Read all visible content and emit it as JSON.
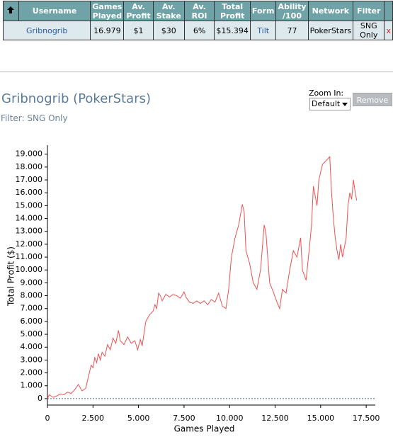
{
  "table": {
    "headers": [
      "Username",
      "Games Played",
      "Av. Profit",
      "Av. Stake",
      "Av. ROI",
      "Total Profit",
      "Form",
      "Ability /100",
      "Network",
      "Filter"
    ],
    "rows": [
      [
        "Gribnogrib",
        "16.979",
        "$1",
        "$30",
        "6%",
        "$15.394",
        "Tilt",
        "77",
        "PokerStars",
        "SNG Only",
        "x"
      ]
    ]
  },
  "controls": {
    "zoom_label": "Zoom In:",
    "zoom_value": "Default",
    "remove_button": "Remove"
  },
  "chart_data": {
    "type": "line",
    "title": "Gribnogrib (PokerStars)",
    "subtitle": "Filter: SNG Only",
    "x_label": "Games Played",
    "y_label": "Total Profit ($)",
    "xlim": [
      0,
      18000
    ],
    "ylim": [
      -500,
      19700
    ],
    "xticks": [
      0,
      {
        "value": 2500,
        "label": "2.500"
      },
      {
        "value": 5000,
        "label": "5.000"
      },
      {
        "value": 7500,
        "label": "7.500"
      },
      {
        "value": 10000,
        "label": "10.000"
      },
      {
        "value": 12500,
        "label": "12.500"
      },
      {
        "value": 15000,
        "label": "15.000"
      },
      {
        "value": 17500,
        "label": "17.500"
      }
    ],
    "yticks": [
      0,
      {
        "value": 1000,
        "label": "1.000"
      },
      {
        "value": 2000,
        "label": "2.000"
      },
      {
        "value": 3000,
        "label": "3.000"
      },
      {
        "value": 4000,
        "label": "4.000"
      },
      {
        "value": 5000,
        "label": "5.000"
      },
      {
        "value": 6000,
        "label": "6.000"
      },
      {
        "value": 7000,
        "label": "7.000"
      },
      {
        "value": 8000,
        "label": "8.000"
      },
      {
        "value": 9000,
        "label": "9.000"
      },
      {
        "value": 10000,
        "label": "10.000"
      },
      {
        "value": 11000,
        "label": "11.000"
      },
      {
        "value": 12000,
        "label": "12.000"
      },
      {
        "value": 13000,
        "label": "13.000"
      },
      {
        "value": 14000,
        "label": "14.000"
      },
      {
        "value": 15000,
        "label": "15.000"
      },
      {
        "value": 16000,
        "label": "16.000"
      },
      {
        "value": 17000,
        "label": "17.000"
      },
      {
        "value": 18000,
        "label": "18.000"
      },
      {
        "value": 19000,
        "label": "19.000"
      }
    ],
    "zero_line_color": "#4a5fc0",
    "series": [
      {
        "color": "#f05050",
        "x": [
          0,
          100,
          300,
          500,
          700,
          900,
          1100,
          1300,
          1500,
          1700,
          1900,
          2100,
          2200,
          2300,
          2400,
          2500,
          2600,
          2700,
          2800,
          2900,
          3000,
          3150,
          3300,
          3450,
          3600,
          3750,
          3900,
          4000,
          4200,
          4400,
          4600,
          4800,
          4950,
          5100,
          5200,
          5400,
          5600,
          5800,
          5900,
          6000,
          6100,
          6200,
          6300,
          6500,
          6700,
          6900,
          7100,
          7300,
          7500,
          7600,
          7800,
          8000,
          8200,
          8400,
          8600,
          8800,
          9000,
          9200,
          9400,
          9600,
          9800,
          9950,
          10100,
          10300,
          10500,
          10700,
          10800,
          10900,
          11100,
          11300,
          11500,
          11700,
          11900,
          12000,
          12200,
          12400,
          12600,
          12750,
          12900,
          13100,
          13300,
          13500,
          13700,
          13900,
          14000,
          14200,
          14400,
          14500,
          14600,
          14800,
          14900,
          15100,
          15300,
          15500,
          15600,
          15700,
          15800,
          15900,
          16000,
          16100,
          16200,
          16400,
          16500,
          16600,
          16700,
          16800,
          16900,
          16979
        ],
        "values": [
          0,
          300,
          100,
          200,
          350,
          300,
          500,
          400,
          700,
          1100,
          600,
          800,
          1400,
          2000,
          2600,
          2400,
          3200,
          2800,
          3500,
          3000,
          3600,
          3300,
          4200,
          3800,
          4700,
          4300,
          5300,
          4500,
          4200,
          4800,
          4300,
          4500,
          3800,
          4600,
          4100,
          6000,
          6500,
          6800,
          7300,
          7000,
          8200,
          8000,
          7600,
          8100,
          7900,
          8100,
          8000,
          7800,
          8300,
          7900,
          7500,
          7400,
          7600,
          7400,
          7600,
          7300,
          7700,
          7500,
          8200,
          7200,
          7000,
          8500,
          11000,
          12500,
          13500,
          15100,
          14500,
          11500,
          10500,
          9000,
          8500,
          10000,
          13500,
          12800,
          9000,
          8300,
          7500,
          7000,
          8500,
          8200,
          10000,
          11500,
          11000,
          12500,
          10000,
          9200,
          12000,
          13500,
          16500,
          15000,
          17000,
          18200,
          18500,
          18800,
          16000,
          14000,
          12500,
          11500,
          10800,
          12000,
          11000,
          12500,
          15000,
          16000,
          15500,
          17000,
          16000,
          15400
        ]
      }
    ]
  }
}
